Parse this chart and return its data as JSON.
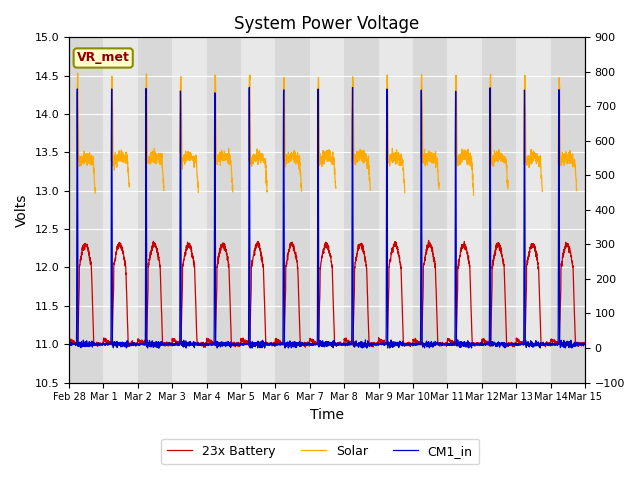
{
  "title": "System Power Voltage",
  "xlabel": "Time",
  "ylabel_left": "Volts",
  "ylim_left": [
    10.5,
    15.0
  ],
  "ylim_right": [
    -100,
    900
  ],
  "yticks_left": [
    10.5,
    11.0,
    11.5,
    12.0,
    12.5,
    13.0,
    13.5,
    14.0,
    14.5,
    15.0
  ],
  "yticks_right": [
    -100,
    0,
    100,
    200,
    300,
    400,
    500,
    600,
    700,
    800,
    900
  ],
  "xtick_labels": [
    "Feb 28",
    "Mar 1",
    "Mar 2",
    "Mar 3",
    "Mar 4",
    "Mar 5",
    "Mar 6",
    "Mar 7",
    "Mar 8",
    "Mar 9",
    "Mar 10",
    "Mar 11",
    "Mar 12",
    "Mar 13",
    "Mar 14",
    "Mar 15"
  ],
  "legend_labels": [
    "23x Battery",
    "Solar",
    "CM1_in"
  ],
  "legend_colors": [
    "#cc0000",
    "#ffaa00",
    "#0000cc"
  ],
  "annotation_text": "VR_met",
  "background_color": "#ffffff",
  "plot_bg_color_odd": "#d8d8d8",
  "plot_bg_color_even": "#e8e8e8",
  "grid_color": "#ffffff",
  "num_days": 15,
  "points_per_day": 240
}
